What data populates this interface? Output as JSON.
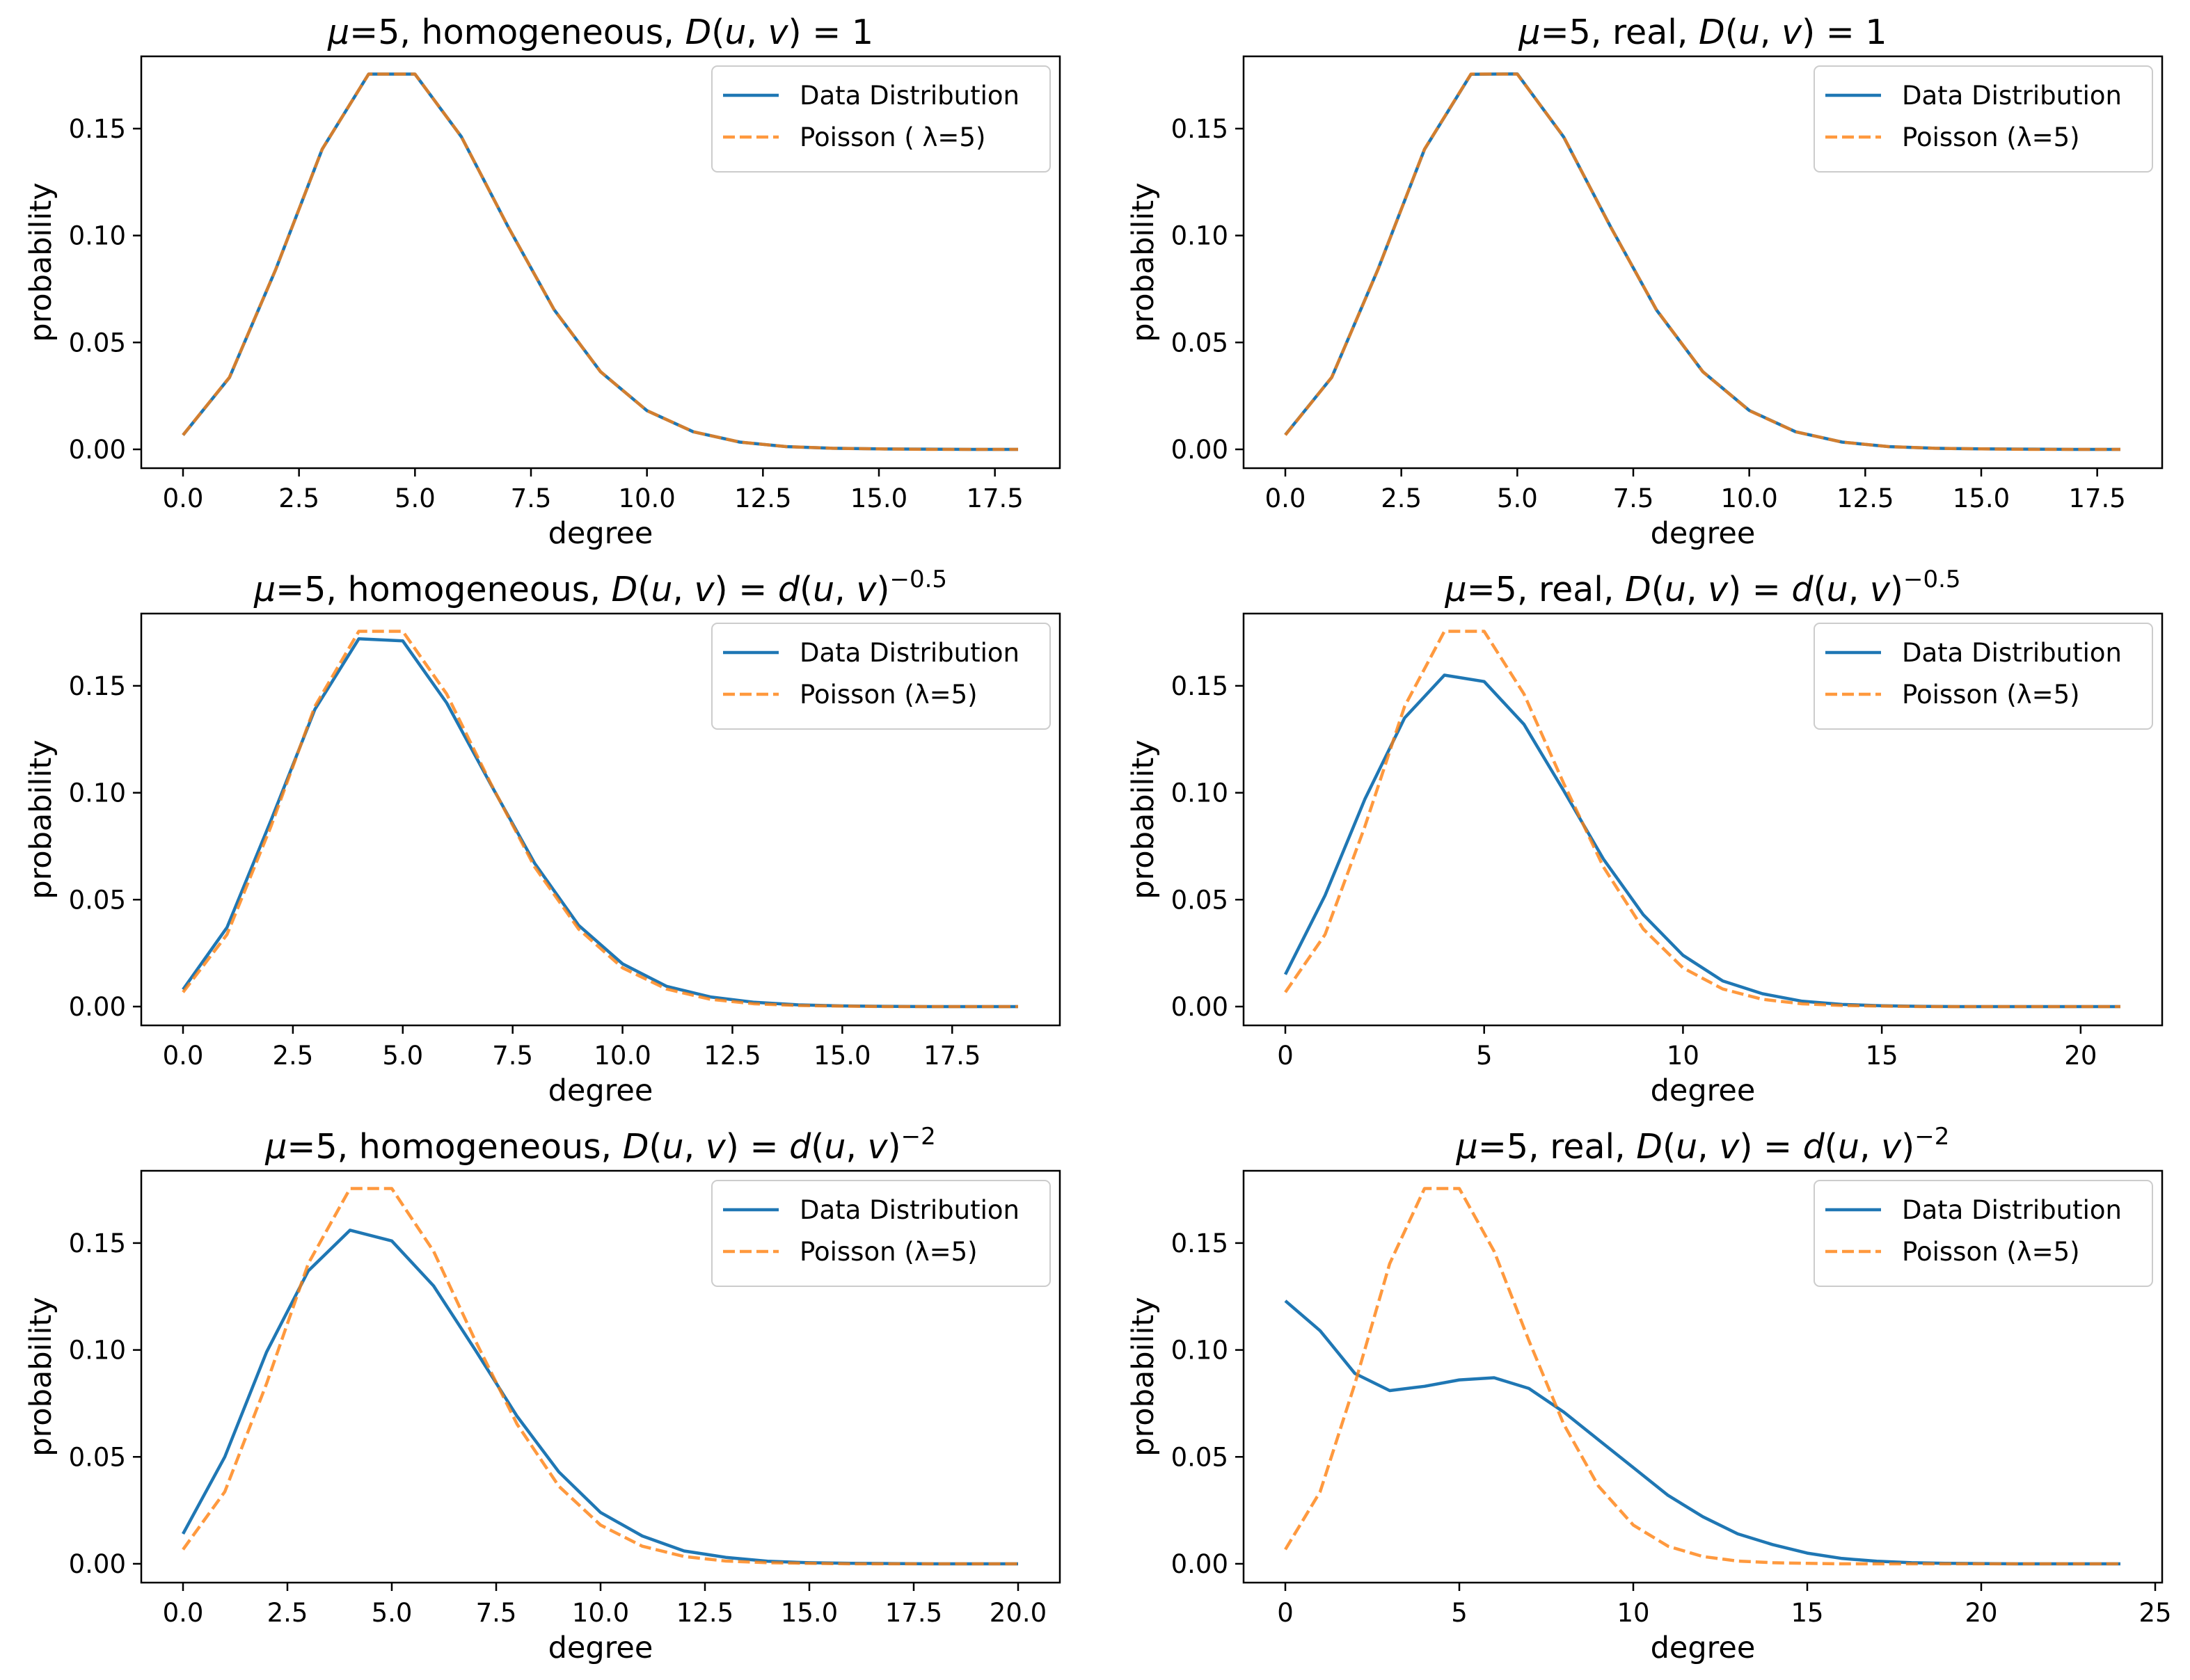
{
  "chart_data": [
    {
      "type": "line",
      "title": "μ=5, homogeneous, D(u,v) = 1",
      "title_parts": [
        {
          "t": "μ",
          "i": true
        },
        {
          "t": "=5, homogeneous, "
        },
        {
          "t": "D",
          "i": true
        },
        {
          "t": "("
        },
        {
          "t": "u",
          "i": true
        },
        {
          "t": ", "
        },
        {
          "t": "v",
          "i": true
        },
        {
          "t": ") = 1"
        }
      ],
      "xlabel": "degree",
      "ylabel": "probability",
      "xlim": [
        -0.9,
        18.9
      ],
      "ylim": [
        -0.0088,
        0.1838
      ],
      "xticks": [
        0,
        2.5,
        5,
        7.5,
        10,
        12.5,
        15,
        17.5
      ],
      "xtick_labels": [
        "0.0",
        "2.5",
        "5.0",
        "7.5",
        "10.0",
        "12.5",
        "15.0",
        "17.5"
      ],
      "yticks": [
        0,
        0.05,
        0.1,
        0.15
      ],
      "ytick_labels": [
        "0.00",
        "0.05",
        "0.10",
        "0.15"
      ],
      "legend_position": "top-right",
      "series": [
        {
          "name": "Data Distribution",
          "color": "#1f77b4",
          "style": "solid",
          "x": [
            0,
            1,
            2,
            3,
            4,
            5,
            6,
            7,
            8,
            9,
            10,
            11,
            12,
            13,
            14,
            15,
            16,
            17,
            18
          ],
          "y": [
            0.0067,
            0.0336,
            0.0842,
            0.1404,
            0.1755,
            0.1755,
            0.1462,
            0.1044,
            0.0653,
            0.0363,
            0.0181,
            0.0082,
            0.0034,
            0.0013,
            0.0005,
            0.0002,
            0.0001,
            0.0,
            0.0
          ]
        },
        {
          "name": "Poisson ( λ=5)",
          "color": "#ff7f0e",
          "style": "dashed",
          "x": [
            0,
            1,
            2,
            3,
            4,
            5,
            6,
            7,
            8,
            9,
            10,
            11,
            12,
            13,
            14,
            15,
            16,
            17,
            18
          ],
          "y": [
            0.0067,
            0.0337,
            0.0842,
            0.1404,
            0.1755,
            0.1755,
            0.1462,
            0.1044,
            0.0653,
            0.0363,
            0.0181,
            0.0082,
            0.0034,
            0.0013,
            0.0005,
            0.0002,
            0.0,
            0.0,
            0.0
          ]
        }
      ]
    },
    {
      "type": "line",
      "title": "μ=5, real, D(u,v) = 1",
      "title_parts": [
        {
          "t": "μ",
          "i": true
        },
        {
          "t": "=5, real, "
        },
        {
          "t": "D",
          "i": true
        },
        {
          "t": "("
        },
        {
          "t": "u",
          "i": true
        },
        {
          "t": ", "
        },
        {
          "t": "v",
          "i": true
        },
        {
          "t": ") = 1"
        }
      ],
      "xlabel": "degree",
      "ylabel": "probability",
      "xlim": [
        -0.9,
        18.9
      ],
      "ylim": [
        -0.0088,
        0.1838
      ],
      "xticks": [
        0,
        2.5,
        5,
        7.5,
        10,
        12.5,
        15,
        17.5
      ],
      "xtick_labels": [
        "0.0",
        "2.5",
        "5.0",
        "7.5",
        "10.0",
        "12.5",
        "15.0",
        "17.5"
      ],
      "yticks": [
        0,
        0.05,
        0.1,
        0.15
      ],
      "ytick_labels": [
        "0.00",
        "0.05",
        "0.10",
        "0.15"
      ],
      "legend_position": "top-right",
      "series": [
        {
          "name": "Data Distribution",
          "color": "#1f77b4",
          "style": "solid",
          "x": [
            0,
            1,
            2,
            3,
            4,
            5,
            6,
            7,
            8,
            9,
            10,
            11,
            12,
            13,
            14,
            15,
            16,
            17,
            18
          ],
          "y": [
            0.0068,
            0.0337,
            0.0843,
            0.1403,
            0.1754,
            0.1756,
            0.1461,
            0.1045,
            0.0652,
            0.0363,
            0.0182,
            0.0082,
            0.0034,
            0.0013,
            0.0005,
            0.0002,
            0.0001,
            0.0,
            0.0
          ]
        },
        {
          "name": "Poisson (λ=5)",
          "color": "#ff7f0e",
          "style": "dashed",
          "x": [
            0,
            1,
            2,
            3,
            4,
            5,
            6,
            7,
            8,
            9,
            10,
            11,
            12,
            13,
            14,
            15,
            16,
            17,
            18
          ],
          "y": [
            0.0067,
            0.0337,
            0.0842,
            0.1404,
            0.1755,
            0.1755,
            0.1462,
            0.1044,
            0.0653,
            0.0363,
            0.0181,
            0.0082,
            0.0034,
            0.0013,
            0.0005,
            0.0002,
            0.0,
            0.0,
            0.0
          ]
        }
      ]
    },
    {
      "type": "line",
      "title": "μ=5, homogeneous, D(u,v) = d(u,v)^−0.5",
      "title_parts": [
        {
          "t": "μ",
          "i": true
        },
        {
          "t": "=5, homogeneous, "
        },
        {
          "t": "D",
          "i": true
        },
        {
          "t": "("
        },
        {
          "t": "u",
          "i": true
        },
        {
          "t": ", "
        },
        {
          "t": "v",
          "i": true
        },
        {
          "t": ") = "
        },
        {
          "t": "d",
          "i": true
        },
        {
          "t": "("
        },
        {
          "t": "u",
          "i": true
        },
        {
          "t": ", "
        },
        {
          "t": "v",
          "i": true
        },
        {
          "t": ")"
        },
        {
          "t": "−0.5",
          "sup": true
        }
      ],
      "xlabel": "degree",
      "ylabel": "probability",
      "xlim": [
        -0.95,
        19.95
      ],
      "ylim": [
        -0.0088,
        0.1838
      ],
      "xticks": [
        0,
        2.5,
        5,
        7.5,
        10,
        12.5,
        15,
        17.5
      ],
      "xtick_labels": [
        "0.0",
        "2.5",
        "5.0",
        "7.5",
        "10.0",
        "12.5",
        "15.0",
        "17.5"
      ],
      "yticks": [
        0,
        0.05,
        0.1,
        0.15
      ],
      "ytick_labels": [
        "0.00",
        "0.05",
        "0.10",
        "0.15"
      ],
      "legend_position": "top-right",
      "series": [
        {
          "name": "Data Distribution",
          "color": "#1f77b4",
          "style": "solid",
          "x": [
            0,
            1,
            2,
            3,
            4,
            5,
            6,
            7,
            8,
            9,
            10,
            11,
            12,
            13,
            14,
            15,
            16,
            17,
            18,
            19
          ],
          "y": [
            0.008,
            0.037,
            0.087,
            0.139,
            0.172,
            0.171,
            0.142,
            0.104,
            0.067,
            0.038,
            0.02,
            0.0095,
            0.0045,
            0.002,
            0.0008,
            0.0003,
            0.0001,
            0.0,
            0.0,
            0.0
          ]
        },
        {
          "name": "Poisson (λ=5)",
          "color": "#ff7f0e",
          "style": "dashed",
          "x": [
            0,
            1,
            2,
            3,
            4,
            5,
            6,
            7,
            8,
            9,
            10,
            11,
            12,
            13,
            14,
            15,
            16,
            17,
            18,
            19
          ],
          "y": [
            0.0067,
            0.0337,
            0.0842,
            0.1404,
            0.1755,
            0.1755,
            0.1462,
            0.1044,
            0.0653,
            0.0363,
            0.0181,
            0.0082,
            0.0034,
            0.0013,
            0.0005,
            0.0002,
            0.0,
            0.0,
            0.0,
            0.0
          ]
        }
      ]
    },
    {
      "type": "line",
      "title": "μ=5, real, D(u,v) = d(u,v)^−0.5",
      "title_parts": [
        {
          "t": "μ",
          "i": true
        },
        {
          "t": "=5, real, "
        },
        {
          "t": "D",
          "i": true
        },
        {
          "t": "("
        },
        {
          "t": "u",
          "i": true
        },
        {
          "t": ", "
        },
        {
          "t": "v",
          "i": true
        },
        {
          "t": ") = "
        },
        {
          "t": "d",
          "i": true
        },
        {
          "t": "("
        },
        {
          "t": "u",
          "i": true
        },
        {
          "t": ", "
        },
        {
          "t": "v",
          "i": true
        },
        {
          "t": ")"
        },
        {
          "t": "−0.5",
          "sup": true
        }
      ],
      "xlabel": "degree",
      "ylabel": "probability",
      "xlim": [
        -1.05,
        22.05
      ],
      "ylim": [
        -0.0088,
        0.1838
      ],
      "xticks": [
        0,
        5,
        10,
        15,
        20
      ],
      "xtick_labels": [
        "0",
        "5",
        "10",
        "15",
        "20"
      ],
      "yticks": [
        0,
        0.05,
        0.1,
        0.15
      ],
      "ytick_labels": [
        "0.00",
        "0.05",
        "0.10",
        "0.15"
      ],
      "legend_position": "top-right",
      "series": [
        {
          "name": "Data Distribution",
          "color": "#1f77b4",
          "style": "solid",
          "x": [
            0,
            1,
            2,
            3,
            4,
            5,
            6,
            7,
            8,
            9,
            10,
            11,
            12,
            13,
            14,
            15,
            16,
            17,
            18,
            19,
            20,
            21
          ],
          "y": [
            0.015,
            0.052,
            0.097,
            0.135,
            0.155,
            0.152,
            0.132,
            0.101,
            0.069,
            0.043,
            0.024,
            0.012,
            0.006,
            0.0025,
            0.001,
            0.0004,
            0.0001,
            0.0,
            0.0,
            0.0,
            0.0,
            0.0
          ]
        },
        {
          "name": "Poisson (λ=5)",
          "color": "#ff7f0e",
          "style": "dashed",
          "x": [
            0,
            1,
            2,
            3,
            4,
            5,
            6,
            7,
            8,
            9,
            10,
            11,
            12,
            13,
            14,
            15,
            16,
            17,
            18,
            19,
            20,
            21
          ],
          "y": [
            0.0067,
            0.0337,
            0.0842,
            0.1404,
            0.1755,
            0.1755,
            0.1462,
            0.1044,
            0.0653,
            0.0363,
            0.0181,
            0.0082,
            0.0034,
            0.0013,
            0.0005,
            0.0002,
            0.0,
            0.0,
            0.0,
            0.0,
            0.0,
            0.0
          ]
        }
      ]
    },
    {
      "type": "line",
      "title": "μ=5, homogeneous, D(u,v) = d(u,v)^−2",
      "title_parts": [
        {
          "t": "μ",
          "i": true
        },
        {
          "t": "=5, homogeneous, "
        },
        {
          "t": "D",
          "i": true
        },
        {
          "t": "("
        },
        {
          "t": "u",
          "i": true
        },
        {
          "t": ", "
        },
        {
          "t": "v",
          "i": true
        },
        {
          "t": ") = "
        },
        {
          "t": "d",
          "i": true
        },
        {
          "t": "("
        },
        {
          "t": "u",
          "i": true
        },
        {
          "t": ", "
        },
        {
          "t": "v",
          "i": true
        },
        {
          "t": ")"
        },
        {
          "t": "−2",
          "sup": true
        }
      ],
      "xlabel": "degree",
      "ylabel": "probability",
      "xlim": [
        -1.0,
        21.0
      ],
      "ylim": [
        -0.0088,
        0.1838
      ],
      "xticks": [
        0,
        2.5,
        5,
        7.5,
        10,
        12.5,
        15,
        17.5,
        20
      ],
      "xtick_labels": [
        "0.0",
        "2.5",
        "5.0",
        "7.5",
        "10.0",
        "12.5",
        "15.0",
        "17.5",
        "20.0"
      ],
      "yticks": [
        0,
        0.05,
        0.1,
        0.15
      ],
      "ytick_labels": [
        "0.00",
        "0.05",
        "0.10",
        "0.15"
      ],
      "legend_position": "top-right",
      "series": [
        {
          "name": "Data Distribution",
          "color": "#1f77b4",
          "style": "solid",
          "x": [
            0,
            1,
            2,
            3,
            4,
            5,
            6,
            7,
            8,
            9,
            10,
            11,
            12,
            13,
            14,
            15,
            16,
            17,
            18,
            19,
            20
          ],
          "y": [
            0.014,
            0.05,
            0.099,
            0.137,
            0.156,
            0.151,
            0.13,
            0.1,
            0.069,
            0.043,
            0.024,
            0.013,
            0.006,
            0.003,
            0.0012,
            0.0005,
            0.0002,
            0.0001,
            0.0,
            0.0,
            0.0
          ]
        },
        {
          "name": "Poisson (λ=5)",
          "color": "#ff7f0e",
          "style": "dashed",
          "x": [
            0,
            1,
            2,
            3,
            4,
            5,
            6,
            7,
            8,
            9,
            10,
            11,
            12,
            13,
            14,
            15,
            16,
            17,
            18,
            19,
            20
          ],
          "y": [
            0.0067,
            0.0337,
            0.0842,
            0.1404,
            0.1755,
            0.1755,
            0.1462,
            0.1044,
            0.0653,
            0.0363,
            0.0181,
            0.0082,
            0.0034,
            0.0013,
            0.0005,
            0.0002,
            0.0,
            0.0,
            0.0,
            0.0,
            0.0
          ]
        }
      ]
    },
    {
      "type": "line",
      "title": "μ=5, real, D(u,v) = d(u,v)^−2",
      "title_parts": [
        {
          "t": "μ",
          "i": true
        },
        {
          "t": "=5, real, "
        },
        {
          "t": "D",
          "i": true
        },
        {
          "t": "("
        },
        {
          "t": "u",
          "i": true
        },
        {
          "t": ", "
        },
        {
          "t": "v",
          "i": true
        },
        {
          "t": ") = "
        },
        {
          "t": "d",
          "i": true
        },
        {
          "t": "("
        },
        {
          "t": "u",
          "i": true
        },
        {
          "t": ", "
        },
        {
          "t": "v",
          "i": true
        },
        {
          "t": ")"
        },
        {
          "t": "−2",
          "sup": true
        }
      ],
      "xlabel": "degree",
      "ylabel": "probability",
      "xlim": [
        -1.2,
        25.2
      ],
      "ylim": [
        -0.0088,
        0.1838
      ],
      "xticks": [
        0,
        5,
        10,
        15,
        20,
        25
      ],
      "xtick_labels": [
        "0",
        "5",
        "10",
        "15",
        "20",
        "25"
      ],
      "yticks": [
        0,
        0.05,
        0.1,
        0.15
      ],
      "ytick_labels": [
        "0.00",
        "0.05",
        "0.10",
        "0.15"
      ],
      "legend_position": "top-right",
      "series": [
        {
          "name": "Data Distribution",
          "color": "#1f77b4",
          "style": "solid",
          "x": [
            0,
            1,
            2,
            3,
            4,
            5,
            6,
            7,
            8,
            9,
            10,
            11,
            12,
            13,
            14,
            15,
            16,
            17,
            18,
            19,
            20,
            21,
            22,
            23,
            24
          ],
          "y": [
            0.123,
            0.109,
            0.089,
            0.081,
            0.083,
            0.086,
            0.087,
            0.082,
            0.071,
            0.058,
            0.045,
            0.032,
            0.022,
            0.014,
            0.009,
            0.005,
            0.0025,
            0.0012,
            0.0005,
            0.0002,
            0.0001,
            0.0,
            0.0,
            0.0,
            0.0
          ]
        },
        {
          "name": "Poisson (λ=5)",
          "color": "#ff7f0e",
          "style": "dashed",
          "x": [
            0,
            1,
            2,
            3,
            4,
            5,
            6,
            7,
            8,
            9,
            10,
            11,
            12,
            13,
            14,
            15,
            16,
            17,
            18,
            19,
            20,
            21,
            22,
            23,
            24
          ],
          "y": [
            0.0067,
            0.0337,
            0.0842,
            0.1404,
            0.1755,
            0.1755,
            0.1462,
            0.1044,
            0.0653,
            0.0363,
            0.0181,
            0.0082,
            0.0034,
            0.0013,
            0.0005,
            0.0002,
            0.0,
            0.0,
            0.0,
            0.0,
            0.0,
            0.0,
            0.0,
            0.0,
            0.0
          ]
        }
      ]
    }
  ]
}
